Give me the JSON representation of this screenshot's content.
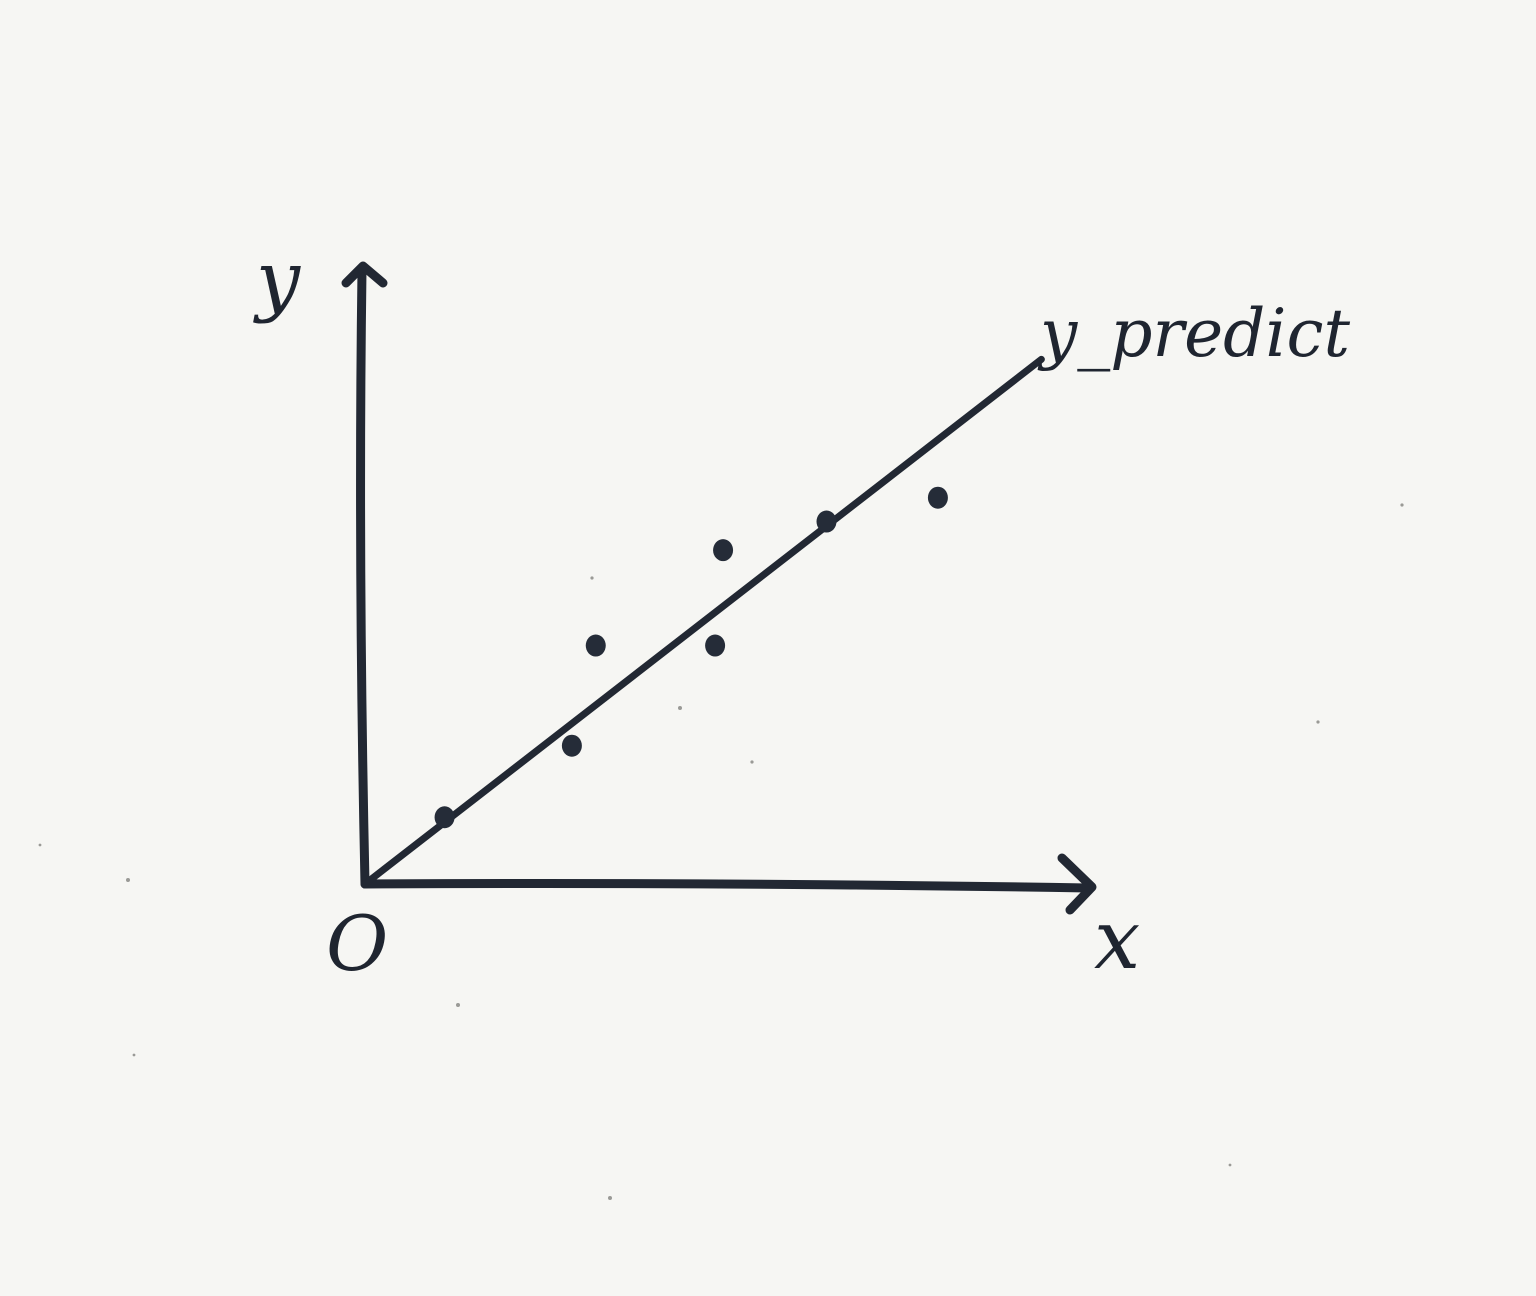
{
  "chart_data": {
    "type": "scatter",
    "title": "",
    "xlabel": "x",
    "ylabel": "y",
    "origin_label": "O",
    "series": [
      {
        "type": "scatter",
        "points": [
          {
            "x": 1.0,
            "y": 0.7
          },
          {
            "x": 2.6,
            "y": 1.45
          },
          {
            "x": 2.9,
            "y": 2.5
          },
          {
            "x": 4.4,
            "y": 2.5
          },
          {
            "x": 4.5,
            "y": 3.5
          },
          {
            "x": 5.8,
            "y": 3.8
          },
          {
            "x": 7.2,
            "y": 4.05
          }
        ]
      },
      {
        "type": "line",
        "name": "y_predict",
        "x": [
          0,
          8.5
        ],
        "y": [
          0,
          5.5
        ]
      }
    ],
    "xlim": [
      0,
      9.3
    ],
    "ylim": [
      0,
      6.5
    ],
    "grid": false,
    "ticks": false,
    "colors": {
      "ink": "#222833",
      "paper": "#f6f6f3"
    }
  }
}
